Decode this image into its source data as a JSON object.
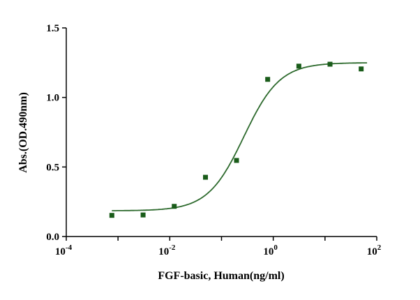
{
  "chart_data": {
    "type": "scatter",
    "title": "",
    "xlabel": "FGF-basic, Human(ng/ml)",
    "ylabel": "Abs.(OD.490nm)",
    "xscale": "log",
    "xlim": [
      0.0001,
      100
    ],
    "ylim": [
      0,
      1.5
    ],
    "x_tick_labels": [
      {
        "base": "10",
        "exp": "-4"
      },
      {
        "base": "10",
        "exp": "-2"
      },
      {
        "base": "10",
        "exp": "0"
      },
      {
        "base": "10",
        "exp": "2"
      }
    ],
    "x_tick_values": [
      0.0001,
      0.01,
      1,
      100
    ],
    "y_ticks": [
      0,
      0.5,
      1.0,
      1.5
    ],
    "y_tick_labels": [
      "0.0",
      "0.5",
      "1.0",
      "1.5"
    ],
    "grid": false,
    "series": [
      {
        "name": "FGF-basic, Human",
        "color": "#1a5c1a",
        "marker": "square",
        "x": [
          0.00076,
          0.00305,
          0.0122,
          0.049,
          0.195,
          0.78,
          3.125,
          12.5,
          50
        ],
        "y": [
          0.152,
          0.155,
          0.217,
          0.426,
          0.547,
          1.13,
          1.225,
          1.239,
          1.205
        ]
      }
    ],
    "fit": {
      "model": "4PL",
      "bottom": 0.185,
      "top": 1.25,
      "ec50": 0.27,
      "hill": 1.25,
      "color": "#2d6a2d"
    }
  }
}
